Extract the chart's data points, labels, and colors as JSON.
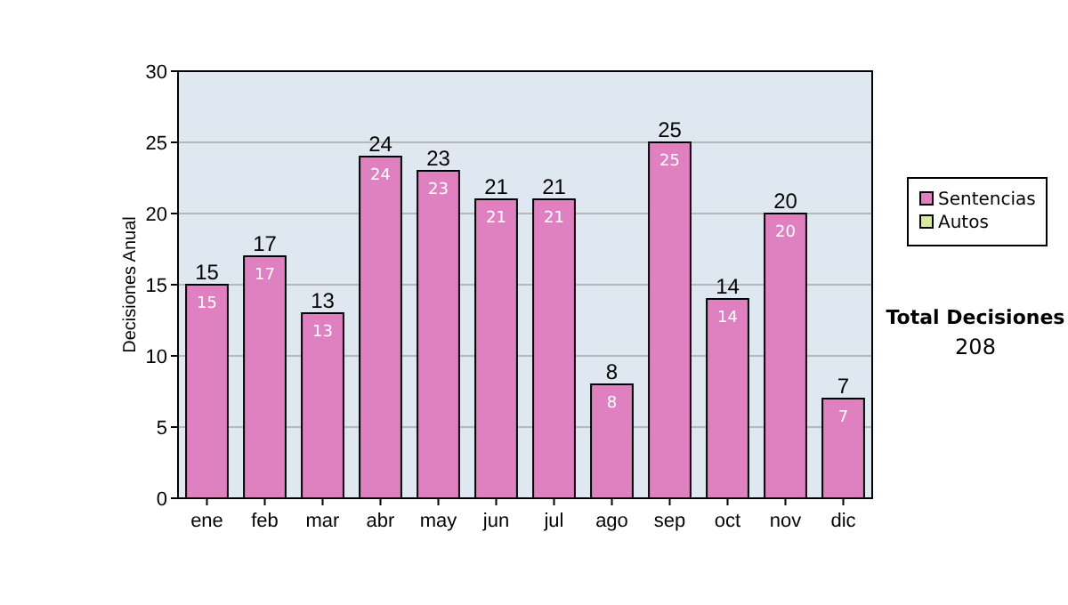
{
  "chart_data": {
    "type": "bar",
    "stacked": true,
    "ylabel": "Decisiones Anual",
    "categories": [
      "ene",
      "feb",
      "mar",
      "abr",
      "may",
      "jun",
      "jul",
      "ago",
      "sep",
      "oct",
      "nov",
      "dic"
    ],
    "series": [
      {
        "name": "Sentencias",
        "color": "#df80c0",
        "values": [
          15,
          17,
          13,
          24,
          23,
          21,
          21,
          8,
          25,
          14,
          20,
          7
        ],
        "value_labels": [
          "15",
          "17",
          "13",
          "24",
          "23",
          "21",
          "21",
          "8",
          "25",
          "14",
          "20",
          "7"
        ]
      },
      {
        "name": "Autos",
        "color": "#d8e8a0",
        "values": [
          0,
          0,
          0,
          0,
          0,
          0,
          0,
          0,
          0,
          0,
          0,
          0
        ]
      }
    ],
    "totals": [
      "15",
      "17",
      "13",
      "24",
      "23",
      "21",
      "21",
      "8",
      "25",
      "14",
      "20",
      "7"
    ],
    "ylim": [
      0,
      30
    ],
    "yticks": [
      0,
      5,
      10,
      15,
      20,
      25,
      30
    ],
    "grid": "y",
    "legend": "right",
    "annotations": [
      "Total Decisiones",
      "208"
    ]
  }
}
